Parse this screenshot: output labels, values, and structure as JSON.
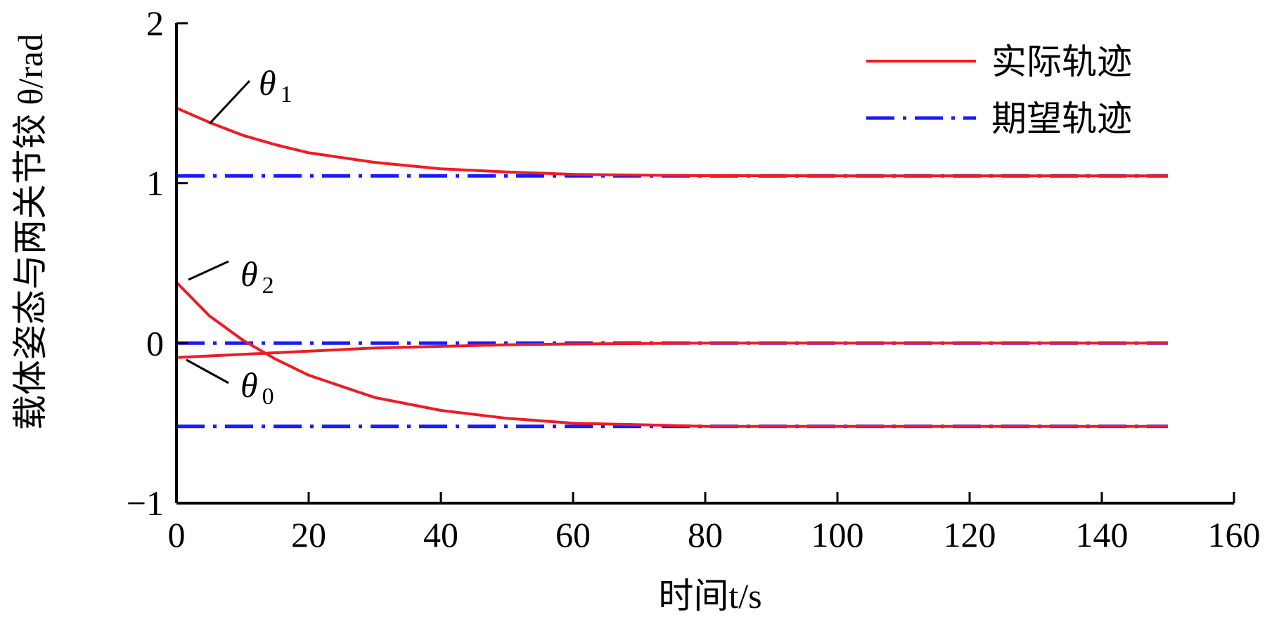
{
  "chart_data": {
    "type": "line",
    "xlabel": "时间t/s",
    "ylabel": "载体姿态与两关节铰 θ/rad",
    "xlim": [
      0,
      160
    ],
    "ylim": [
      -1,
      2
    ],
    "xticks": [
      0,
      20,
      40,
      60,
      80,
      100,
      120,
      140,
      160
    ],
    "yticks": [
      -1,
      0,
      1,
      2
    ],
    "xtick_labels": [
      "0",
      "20",
      "40",
      "60",
      "80",
      "100",
      "120",
      "140",
      "160"
    ],
    "ytick_labels": [
      "−1",
      "0",
      "1",
      "2"
    ],
    "grid": false,
    "legend": {
      "position": "top-right",
      "entries": [
        {
          "label": "实际轨迹",
          "color": "#ee1c25",
          "style": "solid"
        },
        {
          "label": "期望轨迹",
          "color": "#1a1aff",
          "style": "dashdot"
        }
      ]
    },
    "series": [
      {
        "name": "θ1",
        "group": "实际轨迹",
        "color": "#ee1c25",
        "style": "solid",
        "x": [
          0,
          5,
          10,
          15,
          20,
          30,
          40,
          50,
          60,
          70,
          80,
          100,
          120,
          150
        ],
        "y": [
          1.47,
          1.38,
          1.3,
          1.24,
          1.19,
          1.13,
          1.09,
          1.07,
          1.055,
          1.05,
          1.047,
          1.046,
          1.046,
          1.046
        ]
      },
      {
        "name": "θ2",
        "group": "实际轨迹",
        "color": "#ee1c25",
        "style": "solid",
        "x": [
          0,
          5,
          10,
          15,
          20,
          30,
          40,
          50,
          60,
          70,
          80,
          100,
          120,
          150
        ],
        "y": [
          0.38,
          0.17,
          0.02,
          -0.1,
          -0.2,
          -0.34,
          -0.42,
          -0.47,
          -0.5,
          -0.51,
          -0.52,
          -0.52,
          -0.52,
          -0.52
        ]
      },
      {
        "name": "θ0",
        "group": "实际轨迹",
        "color": "#ee1c25",
        "style": "solid",
        "x": [
          0,
          10,
          20,
          30,
          40,
          50,
          60,
          80,
          100,
          150
        ],
        "y": [
          -0.09,
          -0.07,
          -0.05,
          -0.03,
          -0.02,
          -0.01,
          -0.005,
          0,
          0,
          0
        ]
      },
      {
        "group": "期望轨迹",
        "color": "#1a1aff",
        "style": "dashdot",
        "x": [
          0,
          150
        ],
        "y": [
          1.046,
          1.046
        ]
      },
      {
        "group": "期望轨迹",
        "color": "#1a1aff",
        "style": "dashdot",
        "x": [
          0,
          150
        ],
        "y": [
          0,
          0
        ]
      },
      {
        "group": "期望轨迹",
        "color": "#1a1aff",
        "style": "dashdot",
        "x": [
          0,
          150
        ],
        "y": [
          -0.52,
          -0.52
        ]
      }
    ],
    "annotations": [
      {
        "symbol": "θ",
        "subscript": "1",
        "target_series": "θ1"
      },
      {
        "symbol": "θ",
        "subscript": "2",
        "target_series": "θ2"
      },
      {
        "symbol": "θ",
        "subscript": "0",
        "target_series": "θ0"
      }
    ]
  }
}
